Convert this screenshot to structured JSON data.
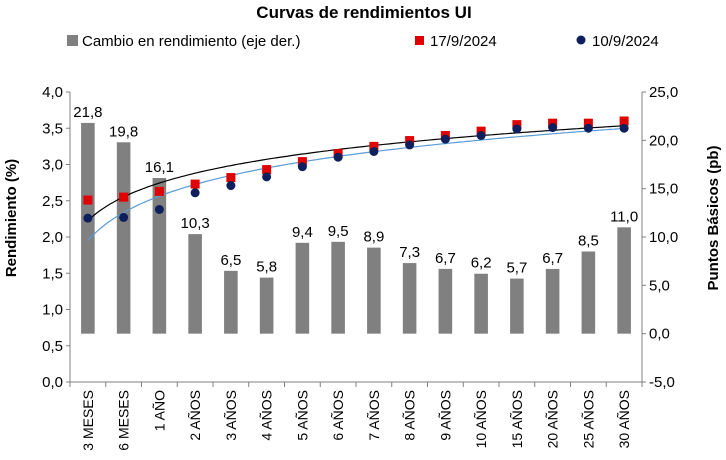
{
  "chart_data": {
    "type": "bar",
    "title": "Curvas de rendimientos UI",
    "categories": [
      "3 MESES",
      "6 MESES",
      "1 AÑO",
      "2 AÑOS",
      "3 AÑOS",
      "4 AÑOS",
      "5 AÑOS",
      "6 AÑOS",
      "7 AÑOS",
      "8 AÑOS",
      "9 AÑOS",
      "10 AÑOS",
      "15 AÑOS",
      "20 AÑOS",
      "25 AÑOS",
      "30 AÑOS"
    ],
    "bars": {
      "name": "Cambio en rendimiento (eje der.)",
      "color": "#808080",
      "values": [
        21.8,
        19.8,
        16.1,
        10.3,
        6.5,
        5.8,
        9.4,
        9.5,
        8.9,
        7.3,
        6.7,
        6.2,
        5.7,
        6.7,
        8.5,
        11.0
      ],
      "labels": [
        "21,8",
        "19,8",
        "16,1",
        "10,3",
        "6,5",
        "5,8",
        "9,4",
        "9,5",
        "8,9",
        "7,3",
        "6,7",
        "6,2",
        "5,7",
        "6,7",
        "8,5",
        "11,0"
      ]
    },
    "series": [
      {
        "name": "17/9/2024",
        "color": "#e00000",
        "marker": "square",
        "values": [
          2.51,
          2.55,
          2.63,
          2.73,
          2.82,
          2.93,
          3.04,
          3.15,
          3.25,
          3.33,
          3.4,
          3.46,
          3.55,
          3.57,
          3.57,
          3.6
        ]
      },
      {
        "name": "10/9/2024",
        "color": "#0d1f5c",
        "marker": "circle",
        "values": [
          2.26,
          2.27,
          2.38,
          2.61,
          2.71,
          2.83,
          2.97,
          3.1,
          3.18,
          3.27,
          3.35,
          3.4,
          3.49,
          3.51,
          3.5,
          3.5
        ]
      }
    ],
    "trendlines": [
      {
        "color": "#000000",
        "for": "17/9/2024"
      },
      {
        "color": "#5b9bd5",
        "for": "10/9/2024"
      }
    ],
    "y_left": {
      "label": "Rendimiento (%)",
      "min": 0,
      "max": 4,
      "step": 0.5,
      "ticks": [
        "0,0",
        "0,5",
        "1,0",
        "1,5",
        "2,0",
        "2,5",
        "3,0",
        "3,5",
        "4,0"
      ]
    },
    "y_right": {
      "label": "Puntos Básicos (pb)",
      "min": -5,
      "max": 25,
      "step": 5,
      "ticks": [
        "-5,0",
        "0,0",
        "5,0",
        "10,0",
        "15,0",
        "20,0",
        "25,0"
      ]
    },
    "legend_position": "top",
    "grid": false
  }
}
